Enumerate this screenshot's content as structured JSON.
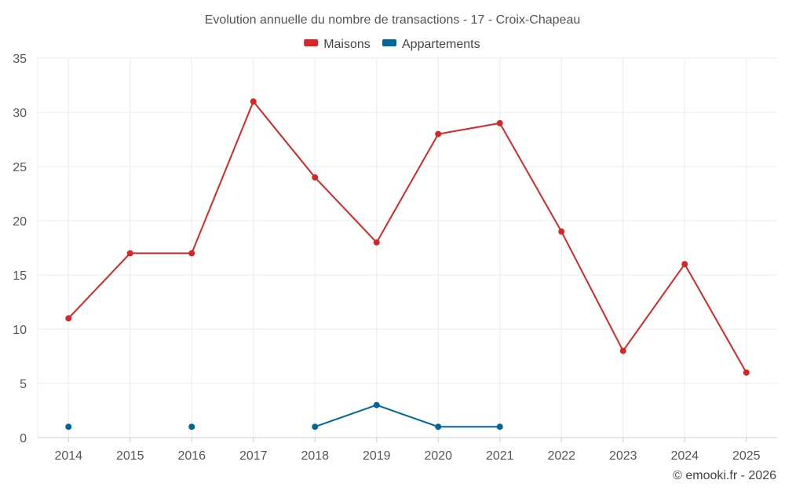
{
  "chart_data": {
    "type": "line",
    "title": "Evolution annuelle du nombre de transactions - 17 - Croix-Chapeau",
    "categories": [
      "2014",
      "2015",
      "2016",
      "2017",
      "2018",
      "2019",
      "2020",
      "2021",
      "2022",
      "2023",
      "2024",
      "2025"
    ],
    "ylim": [
      0,
      35
    ],
    "yticks": [
      0,
      5,
      10,
      15,
      20,
      25,
      30,
      35
    ],
    "grid": true,
    "legend_position": "top-center",
    "series": [
      {
        "name": "Maisons",
        "color": "#d62728",
        "values": [
          11,
          17,
          17,
          31,
          24,
          18,
          28,
          29,
          19,
          8,
          16,
          6
        ]
      },
      {
        "name": "Appartements",
        "color": "#006699",
        "values": [
          1,
          null,
          1,
          null,
          1,
          3,
          1,
          1,
          null,
          null,
          null,
          null
        ]
      }
    ]
  },
  "credit": "© emooki.fr - 2026"
}
